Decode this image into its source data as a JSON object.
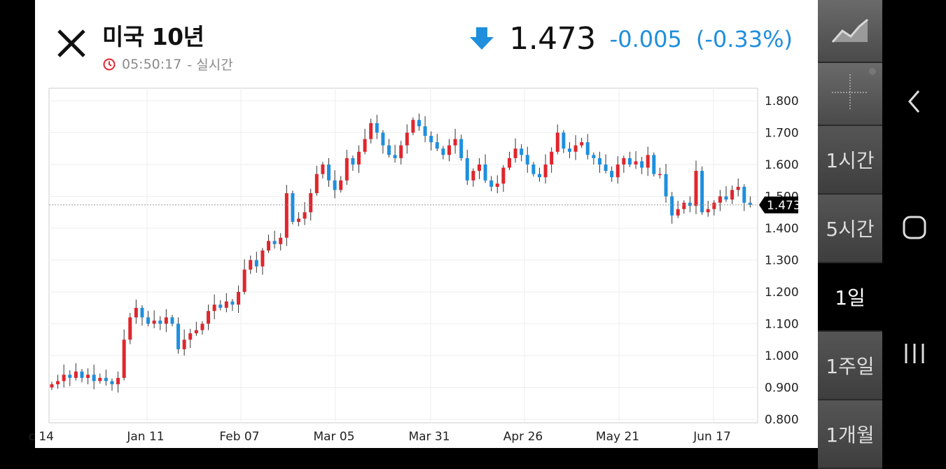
{
  "header": {
    "title": "미국 10년",
    "time": "05:50:17",
    "time_suffix": "- 실시간",
    "price": "1.473",
    "change": "-0.005",
    "change_pct": "(-0.33%)",
    "direction_icon": "arrow-down-icon"
  },
  "colors": {
    "up": "#e0262d",
    "down": "#1f8fdd",
    "accent": "#1f8fdd"
  },
  "sidebar": {
    "periods": [
      {
        "label": "1시간",
        "active": false
      },
      {
        "label": "5시간",
        "active": false
      },
      {
        "label": "1일",
        "active": true
      },
      {
        "label": "1주일",
        "active": false
      },
      {
        "label": "1개월",
        "active": false
      }
    ]
  },
  "chart_data": {
    "type": "candlestick",
    "x_tick_labels": [
      "c 14",
      "Jan 11",
      "Feb 07",
      "Mar 05",
      "Mar 31",
      "Apr 26",
      "May 21",
      "Jun 17"
    ],
    "y_tick_labels": [
      "1.800",
      "1.700",
      "1.600",
      "1.500",
      "1.400",
      "1.300",
      "1.200",
      "1.100",
      "1.000",
      "0.900",
      "0.800"
    ],
    "ylim": [
      0.8,
      1.8
    ],
    "current_value": 1.473,
    "current_label": "1.473",
    "closes": [
      0.91,
      0.92,
      0.94,
      0.93,
      0.95,
      0.93,
      0.94,
      0.92,
      0.93,
      0.92,
      0.91,
      0.93,
      1.05,
      1.12,
      1.15,
      1.12,
      1.1,
      1.11,
      1.1,
      1.12,
      1.1,
      1.02,
      1.05,
      1.07,
      1.08,
      1.1,
      1.14,
      1.16,
      1.15,
      1.17,
      1.16,
      1.2,
      1.27,
      1.3,
      1.28,
      1.33,
      1.36,
      1.35,
      1.37,
      1.51,
      1.42,
      1.43,
      1.45,
      1.51,
      1.57,
      1.6,
      1.55,
      1.52,
      1.55,
      1.62,
      1.6,
      1.64,
      1.68,
      1.73,
      1.7,
      1.66,
      1.63,
      1.62,
      1.66,
      1.7,
      1.74,
      1.72,
      1.69,
      1.67,
      1.65,
      1.63,
      1.66,
      1.68,
      1.62,
      1.55,
      1.58,
      1.6,
      1.55,
      1.53,
      1.54,
      1.59,
      1.62,
      1.65,
      1.63,
      1.6,
      1.57,
      1.56,
      1.6,
      1.64,
      1.7,
      1.65,
      1.64,
      1.66,
      1.67,
      1.63,
      1.62,
      1.6,
      1.58,
      1.56,
      1.6,
      1.62,
      1.6,
      1.61,
      1.59,
      1.63,
      1.57,
      1.57,
      1.5,
      1.44,
      1.46,
      1.48,
      1.47,
      1.58,
      1.45,
      1.46,
      1.48,
      1.5,
      1.49,
      1.52,
      1.53,
      1.48,
      1.473
    ]
  },
  "nav": {
    "back": "back-icon",
    "home": "home-icon",
    "recents": "recents-icon"
  }
}
